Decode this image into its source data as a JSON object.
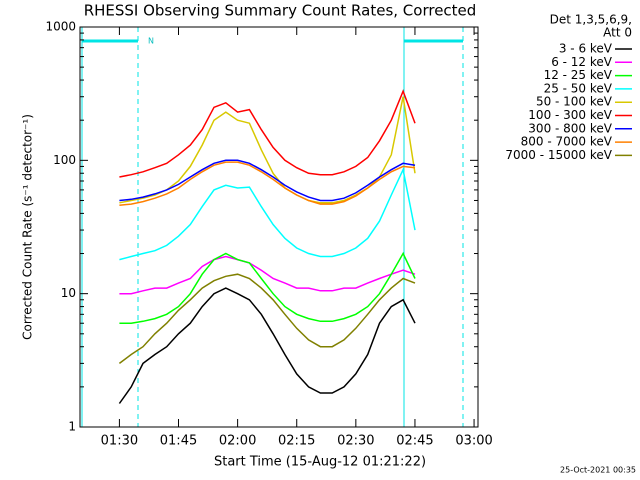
{
  "chart_data": {
    "type": "line",
    "title": "RHESSI Observing Summary Count Rates, Corrected",
    "x_label": "Start Time (15-Aug-12 01:21:22)",
    "y_label": "Corrected Count Rate (s⁻¹ detector⁻¹)",
    "footer": "25-Oct-2021 00:35",
    "annotation": "N",
    "legend_title": [
      "Det 1,3,5,6,9,",
      "Att 0"
    ],
    "log_y": true,
    "xlim": [
      "01:20",
      "03:01"
    ],
    "xticks": [
      "01:30",
      "01:45",
      "02:00",
      "02:15",
      "02:30",
      "02:45",
      "03:00"
    ],
    "ylim": [
      1,
      1000
    ],
    "yticks": [
      1,
      10,
      100,
      1000
    ],
    "x": [
      "01:30",
      "01:33",
      "01:36",
      "01:39",
      "01:42",
      "01:45",
      "01:48",
      "01:51",
      "01:54",
      "01:57",
      "02:00",
      "02:03",
      "02:06",
      "02:09",
      "02:12",
      "02:15",
      "02:18",
      "02:21",
      "02:24",
      "02:27",
      "02:30",
      "02:33",
      "02:36",
      "02:39",
      "02:42",
      "02:45"
    ],
    "series": [
      {
        "name": "3 - 6 keV",
        "color": "#000000",
        "values": [
          1.5,
          2,
          3,
          3.5,
          4,
          5,
          6,
          8,
          10,
          11,
          10,
          9,
          7,
          5,
          3.5,
          2.5,
          2,
          1.8,
          1.8,
          2,
          2.5,
          3.5,
          6,
          8,
          9,
          6
        ]
      },
      {
        "name": "6 - 12 keV",
        "color": "#ff00ff",
        "values": [
          10,
          10,
          10.5,
          11,
          11,
          12,
          13,
          16,
          18,
          19,
          18,
          17,
          15,
          13,
          12,
          11,
          11,
          10.5,
          10.5,
          11,
          11,
          12,
          13,
          14,
          15,
          14
        ]
      },
      {
        "name": "12 - 25 keV",
        "color": "#00ff00",
        "values": [
          6,
          6,
          6.2,
          6.5,
          7,
          8,
          10,
          14,
          18,
          20,
          18,
          17,
          13,
          10,
          8,
          7,
          6.5,
          6.2,
          6.2,
          6.5,
          7,
          8,
          10,
          14,
          20,
          13
        ]
      },
      {
        "name": "25 - 50 keV",
        "color": "#00ffff",
        "values": [
          18,
          19,
          20,
          21,
          23,
          27,
          33,
          45,
          60,
          65,
          62,
          63,
          45,
          33,
          26,
          22,
          20,
          19,
          19,
          20,
          22,
          26,
          35,
          55,
          85,
          30
        ]
      },
      {
        "name": "50 - 100 keV",
        "color": "#d8c800",
        "values": [
          48,
          50,
          52,
          55,
          60,
          70,
          90,
          130,
          200,
          230,
          200,
          190,
          120,
          80,
          62,
          55,
          50,
          48,
          48,
          50,
          55,
          62,
          75,
          110,
          300,
          80
        ]
      },
      {
        "name": "100 - 300 keV",
        "color": "#ff0000",
        "values": [
          75,
          78,
          82,
          88,
          95,
          110,
          130,
          170,
          250,
          270,
          230,
          240,
          170,
          125,
          100,
          88,
          80,
          78,
          78,
          82,
          90,
          105,
          140,
          200,
          330,
          190
        ]
      },
      {
        "name": "300 - 800 keV",
        "color": "#0000ff",
        "values": [
          50,
          51,
          53,
          56,
          60,
          66,
          75,
          85,
          95,
          100,
          100,
          95,
          85,
          75,
          65,
          58,
          53,
          50,
          50,
          52,
          57,
          65,
          75,
          85,
          95,
          92
        ]
      },
      {
        "name": "800 - 7000 keV",
        "color": "#ff8000",
        "values": [
          46,
          47,
          49,
          52,
          56,
          62,
          72,
          82,
          92,
          97,
          97,
          92,
          82,
          72,
          62,
          55,
          50,
          47,
          47,
          49,
          54,
          62,
          72,
          82,
          90,
          88
        ]
      },
      {
        "name": "7000 - 15000 keV",
        "color": "#808000",
        "values": [
          3,
          3.5,
          4,
          5,
          6,
          7.5,
          9,
          11,
          12.5,
          13.5,
          14,
          13,
          11,
          9,
          7,
          5.5,
          4.5,
          4,
          4,
          4.5,
          5.5,
          7,
          9,
          11,
          13,
          12
        ]
      }
    ]
  }
}
